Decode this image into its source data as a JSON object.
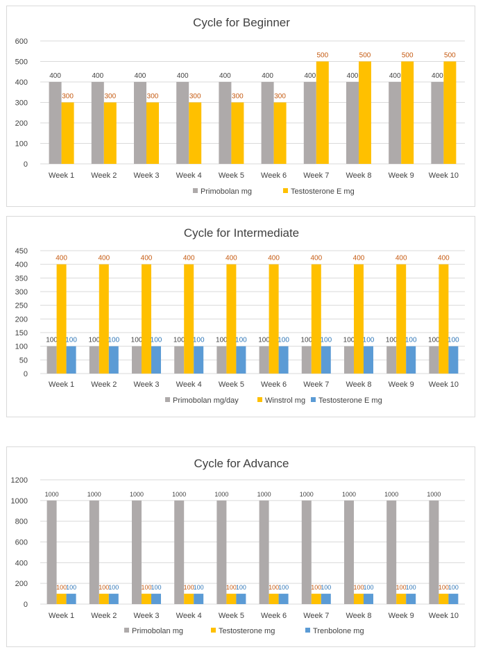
{
  "colors": {
    "gray": "#aeaaaa",
    "gold": "#ffc000",
    "blue": "#5b9bd5",
    "grid": "#d9d9d9",
    "text": "#404040",
    "label_gray": "#404040",
    "label_gold": "#c55a11",
    "label_blue": "#2e75b6"
  },
  "chart_data": [
    {
      "type": "bar",
      "title": "Cycle for Beginner",
      "categories": [
        "Week 1",
        "Week 2",
        "Week 3",
        "Week 4",
        "Week 5",
        "Week 6",
        "Week 7",
        "Week 8",
        "Week 9",
        "Week 10"
      ],
      "ylim": [
        0,
        600
      ],
      "yticks": [
        0,
        100,
        200,
        300,
        400,
        500,
        600
      ],
      "ytick_labels": [
        "0",
        "100",
        "200",
        "300",
        "400",
        "500",
        "600"
      ],
      "legend_position": "bottom",
      "grid": true,
      "series": [
        {
          "name": "Primobolan mg",
          "color": "gray",
          "label_color": "label_gray",
          "values": [
            400,
            400,
            400,
            400,
            400,
            400,
            400,
            400,
            400,
            400
          ],
          "labels": [
            "400",
            "400",
            "400",
            "400",
            "400",
            "400",
            "400",
            "400",
            "400",
            "400"
          ]
        },
        {
          "name": "Testosterone E mg",
          "color": "gold",
          "label_color": "label_gold",
          "values": [
            300,
            300,
            300,
            300,
            300,
            300,
            500,
            500,
            500,
            500
          ],
          "labels": [
            "300",
            "300",
            "300",
            "300",
            "300",
            "300",
            "500",
            "500",
            "500",
            "500"
          ]
        }
      ]
    },
    {
      "type": "bar",
      "title": "Cycle for Intermediate",
      "categories": [
        "Week 1",
        "Week 2",
        "Week 3",
        "Week 4",
        "Week 5",
        "Week 6",
        "Week 7",
        "Week 8",
        "Week 9",
        "Week 10"
      ],
      "ylim": [
        0,
        450
      ],
      "yticks": [
        0,
        50,
        100,
        150,
        200,
        250,
        300,
        350,
        400,
        450
      ],
      "ytick_labels": [
        "0",
        "50",
        "100",
        "150",
        "200",
        "250",
        "300",
        "350",
        "400",
        "450"
      ],
      "legend_position": "bottom",
      "grid": true,
      "series": [
        {
          "name": "Primobolan mg/day",
          "color": "gray",
          "label_color": "label_gray",
          "values": [
            100,
            100,
            100,
            100,
            100,
            100,
            100,
            100,
            100,
            100
          ],
          "labels": [
            "100",
            "100",
            "100",
            "100",
            "100",
            "100",
            "100",
            "100",
            "100",
            "100"
          ]
        },
        {
          "name": "Winstrol mg",
          "color": "gold",
          "label_color": "label_gold",
          "values": [
            400,
            400,
            400,
            400,
            400,
            400,
            400,
            400,
            400,
            400
          ],
          "labels": [
            "400",
            "400",
            "400",
            "400",
            "400",
            "400",
            "400",
            "400",
            "400",
            "400"
          ]
        },
        {
          "name": "Testosterone E mg",
          "color": "blue",
          "label_color": "label_blue",
          "values": [
            100,
            100,
            100,
            100,
            100,
            100,
            100,
            100,
            100,
            100
          ],
          "labels": [
            "100",
            "100",
            "100",
            "100",
            "100",
            "100",
            "100",
            "100",
            "100",
            "100"
          ]
        }
      ]
    },
    {
      "type": "bar",
      "title": "Cycle for Advance",
      "categories": [
        "Week 1",
        "Week 2",
        "Week 3",
        "Week 4",
        "Week 5",
        "Week 6",
        "Week 7",
        "Week 8",
        "Week 9",
        "Week 10"
      ],
      "ylim": [
        0,
        1200
      ],
      "yticks": [
        0,
        200,
        400,
        600,
        800,
        1000,
        1200
      ],
      "ytick_labels": [
        "0",
        "200",
        "400",
        "600",
        "800",
        "1000",
        "1200"
      ],
      "legend_position": "bottom",
      "grid": true,
      "series": [
        {
          "name": "Primobolan mg",
          "color": "gray",
          "label_color": "label_gray",
          "values": [
            1000,
            1000,
            1000,
            1000,
            1000,
            1000,
            1000,
            1000,
            1000,
            1000
          ],
          "labels": [
            "1000",
            "1000",
            "1000",
            "1000",
            "1000",
            "1000",
            "1000",
            "1000",
            "1000",
            "1000"
          ]
        },
        {
          "name": "Testosterone mg",
          "color": "gold",
          "label_color": "label_gold",
          "values": [
            100,
            100,
            100,
            100,
            100,
            100,
            100,
            100,
            100,
            100
          ],
          "labels": [
            "100",
            "100",
            "100",
            "100",
            "100",
            "100",
            "100",
            "100",
            "100",
            "100"
          ]
        },
        {
          "name": "Trenbolone mg",
          "color": "blue",
          "label_color": "label_blue",
          "values": [
            100,
            100,
            100,
            100,
            100,
            100,
            100,
            100,
            100,
            100
          ],
          "labels": [
            "100",
            "100",
            "100",
            "100",
            "100",
            "100",
            "100",
            "100",
            "100",
            "100"
          ]
        }
      ]
    }
  ]
}
